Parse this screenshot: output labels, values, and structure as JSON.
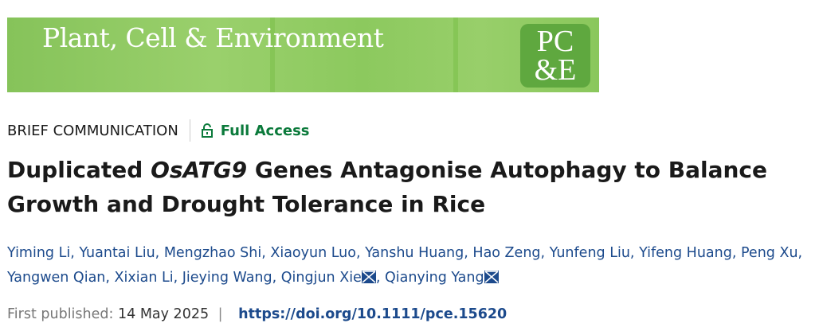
{
  "banner": {
    "journal_name": "Plant, Cell & Environment",
    "logo_text": "PC&E",
    "color": "#8dc860"
  },
  "article": {
    "type": "BRIEF COMMUNICATION",
    "access": "Full Access",
    "title_pre": "Duplicated ",
    "title_italic": "OsATG9",
    "title_post": " Genes Antagonise Autophagy to Balance Growth and Drought Tolerance in Rice",
    "authors": [
      "Yiming Li",
      "Yuantai Liu",
      "Mengzhao Shi",
      "Xiaoyun Luo",
      "Yanshu Huang",
      "Hao Zeng",
      "Yunfeng Liu",
      "Yifeng Huang",
      "Peng Xu",
      "Yangwen Qian",
      "Xixian Li",
      "Jieying Wang",
      "Qingjun Xie",
      "Qianying Yang"
    ],
    "first_published_label": "First published:",
    "first_published_date": "14 May 2025",
    "separator": "|",
    "doi": "https://doi.org/10.1111/pce.15620"
  }
}
